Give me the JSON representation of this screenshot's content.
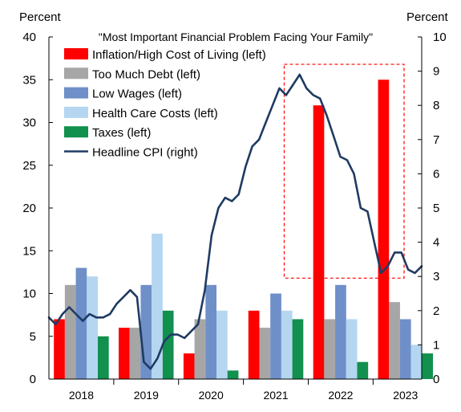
{
  "chart_data": {
    "type": "bar",
    "title": "\"Most Important Financial Problem Facing Your Family\"",
    "left_axis": {
      "label": "Percent",
      "range": [
        0,
        40
      ],
      "ticks": [
        0,
        5,
        10,
        15,
        20,
        25,
        30,
        35,
        40
      ]
    },
    "right_axis": {
      "label": "Percent",
      "range": [
        0,
        10
      ],
      "ticks": [
        0,
        1,
        2,
        3,
        4,
        5,
        6,
        7,
        8,
        9,
        10
      ]
    },
    "categories": [
      "2018",
      "2019",
      "2020",
      "2021",
      "2022",
      "2023"
    ],
    "series": [
      {
        "name": "Inflation/High Cost of Living (left)",
        "color": "#ff0000",
        "values": [
          7,
          6,
          3,
          8,
          32,
          35
        ]
      },
      {
        "name": "Too Much Debt (left)",
        "color": "#a6a6a6",
        "values": [
          11,
          6,
          7,
          6,
          7,
          9
        ]
      },
      {
        "name": "Low Wages (left)",
        "color": "#6f8fc9",
        "values": [
          13,
          11,
          11,
          10,
          11,
          7
        ]
      },
      {
        "name": "Health Care Costs (left)",
        "color": "#b4d6f0",
        "values": [
          12,
          17,
          8,
          8,
          7,
          4
        ]
      },
      {
        "name": "Taxes (left)",
        "color": "#12904e",
        "values": [
          5,
          8,
          1,
          7,
          2,
          3
        ]
      }
    ],
    "line_series": {
      "name": "Headline CPI (right)",
      "axis": "right",
      "color": "#1f3b63",
      "x_start": 2018.0,
      "x_end": 2023.75,
      "values": [
        1.8,
        1.6,
        1.9,
        2.1,
        1.9,
        1.7,
        1.9,
        1.8,
        1.8,
        1.9,
        2.2,
        2.4,
        2.6,
        2.4,
        0.5,
        0.3,
        0.6,
        1.1,
        1.3,
        1.3,
        1.2,
        1.4,
        1.6,
        2.6,
        4.2,
        5.0,
        5.3,
        5.2,
        5.4,
        6.2,
        6.8,
        7.0,
        7.5,
        8.0,
        8.5,
        8.3,
        8.6,
        8.9,
        8.5,
        8.3,
        8.2,
        7.7,
        7.1,
        6.5,
        6.4,
        6.0,
        5.0,
        4.9,
        4.0,
        3.1,
        3.3,
        3.7,
        3.7,
        3.2,
        3.1,
        3.3
      ]
    },
    "highlight_box": {
      "x_range": [
        2022.0,
        2023.75
      ],
      "y_range_right": [
        2.95,
        9.2
      ],
      "style": "red-dashed"
    },
    "legend_placement": "top-left"
  }
}
